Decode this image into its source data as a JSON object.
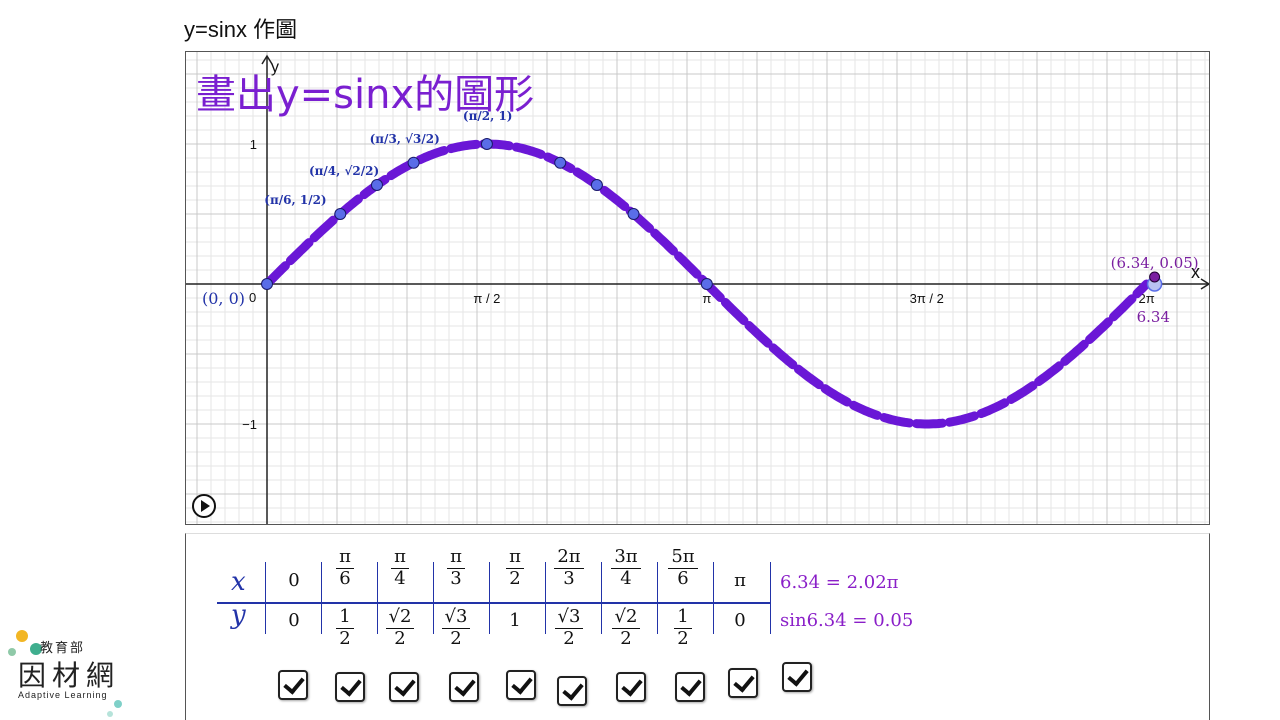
{
  "page": {
    "title": "y=sinx 作圖"
  },
  "graph": {
    "big_title": "畫出y=sinx的圖形",
    "axis_x_label": "x",
    "axis_y_label": "y",
    "origin_label": "0",
    "x_ticks": [
      "π / 2",
      "π",
      "3π / 2",
      "2π"
    ],
    "y_ticks": [
      "1",
      "−1"
    ],
    "point_labels": {
      "origin": "(0, 0)",
      "pi6": "(π/6, 1/2)",
      "pi4": "(π/4, √2/2)",
      "pi3": "(π/3, √3/2)",
      "pi2": "(π/2, 1)",
      "moving": "(6.34, 0.05)",
      "slider_value": "6.34"
    },
    "curve_color": "#6a17d6",
    "point_color": "#5a6de8",
    "moving_point_x": 6.34,
    "moving_point_y": 0.05
  },
  "table": {
    "x_label": "x",
    "y_label": "y",
    "x_values": [
      "0",
      "π/6",
      "π/4",
      "π/3",
      "π/2",
      "2π/3",
      "3π/4",
      "5π/6",
      "π"
    ],
    "y_values": [
      "0",
      "1/2",
      "√2/2",
      "√3/2",
      "1",
      "√3/2",
      "√2/2",
      "1/2",
      "0"
    ],
    "x_note": "6.34 = 2.02π",
    "y_note": "sin6.34 = 0.05"
  },
  "checkboxes": [
    true,
    true,
    true,
    true,
    true,
    true,
    true,
    true,
    true,
    true
  ],
  "logo": {
    "top": "教育部",
    "main": "因材網",
    "sub": "Adaptive Learning"
  },
  "colors": {
    "accent": "#7a1fd0",
    "table_blue": "#2233a8",
    "note_purple": "#8a1fc8"
  }
}
